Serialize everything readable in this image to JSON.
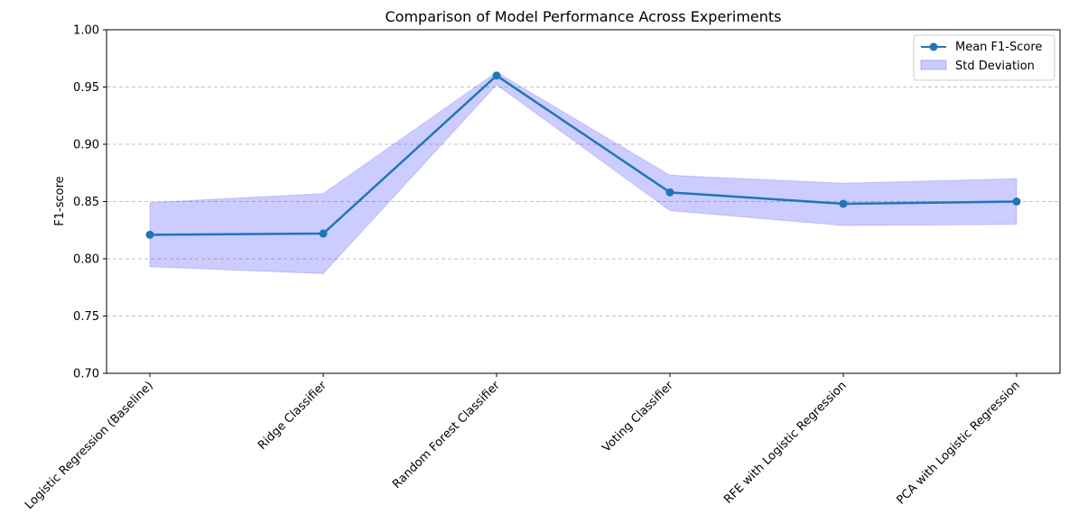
{
  "chart_data": {
    "type": "line",
    "title": "Comparison of Model Performance Across Experiments",
    "xlabel": "",
    "ylabel": "F1-score",
    "ylim": [
      0.7,
      1.0
    ],
    "yticks": [
      "0.70",
      "0.75",
      "0.80",
      "0.85",
      "0.90",
      "0.95",
      "1.00"
    ],
    "grid": "y-dashed",
    "legend_position": "top-right",
    "categories": [
      "Logistic Regression (Baseline)",
      "Ridge Classifier",
      "Random Forest Classifier",
      "Voting Classifier",
      "RFE with Logistic Regression",
      "PCA with Logistic Regression"
    ],
    "series": [
      {
        "name": "Mean F1-Score",
        "values": [
          0.821,
          0.822,
          0.96,
          0.858,
          0.848,
          0.85
        ],
        "color": "#1f77b4"
      }
    ],
    "band": {
      "name": "Std Deviation",
      "upper": [
        0.849,
        0.857,
        0.963,
        0.873,
        0.866,
        0.87
      ],
      "lower": [
        0.793,
        0.787,
        0.952,
        0.842,
        0.829,
        0.83
      ],
      "color": "#0000ff"
    }
  }
}
